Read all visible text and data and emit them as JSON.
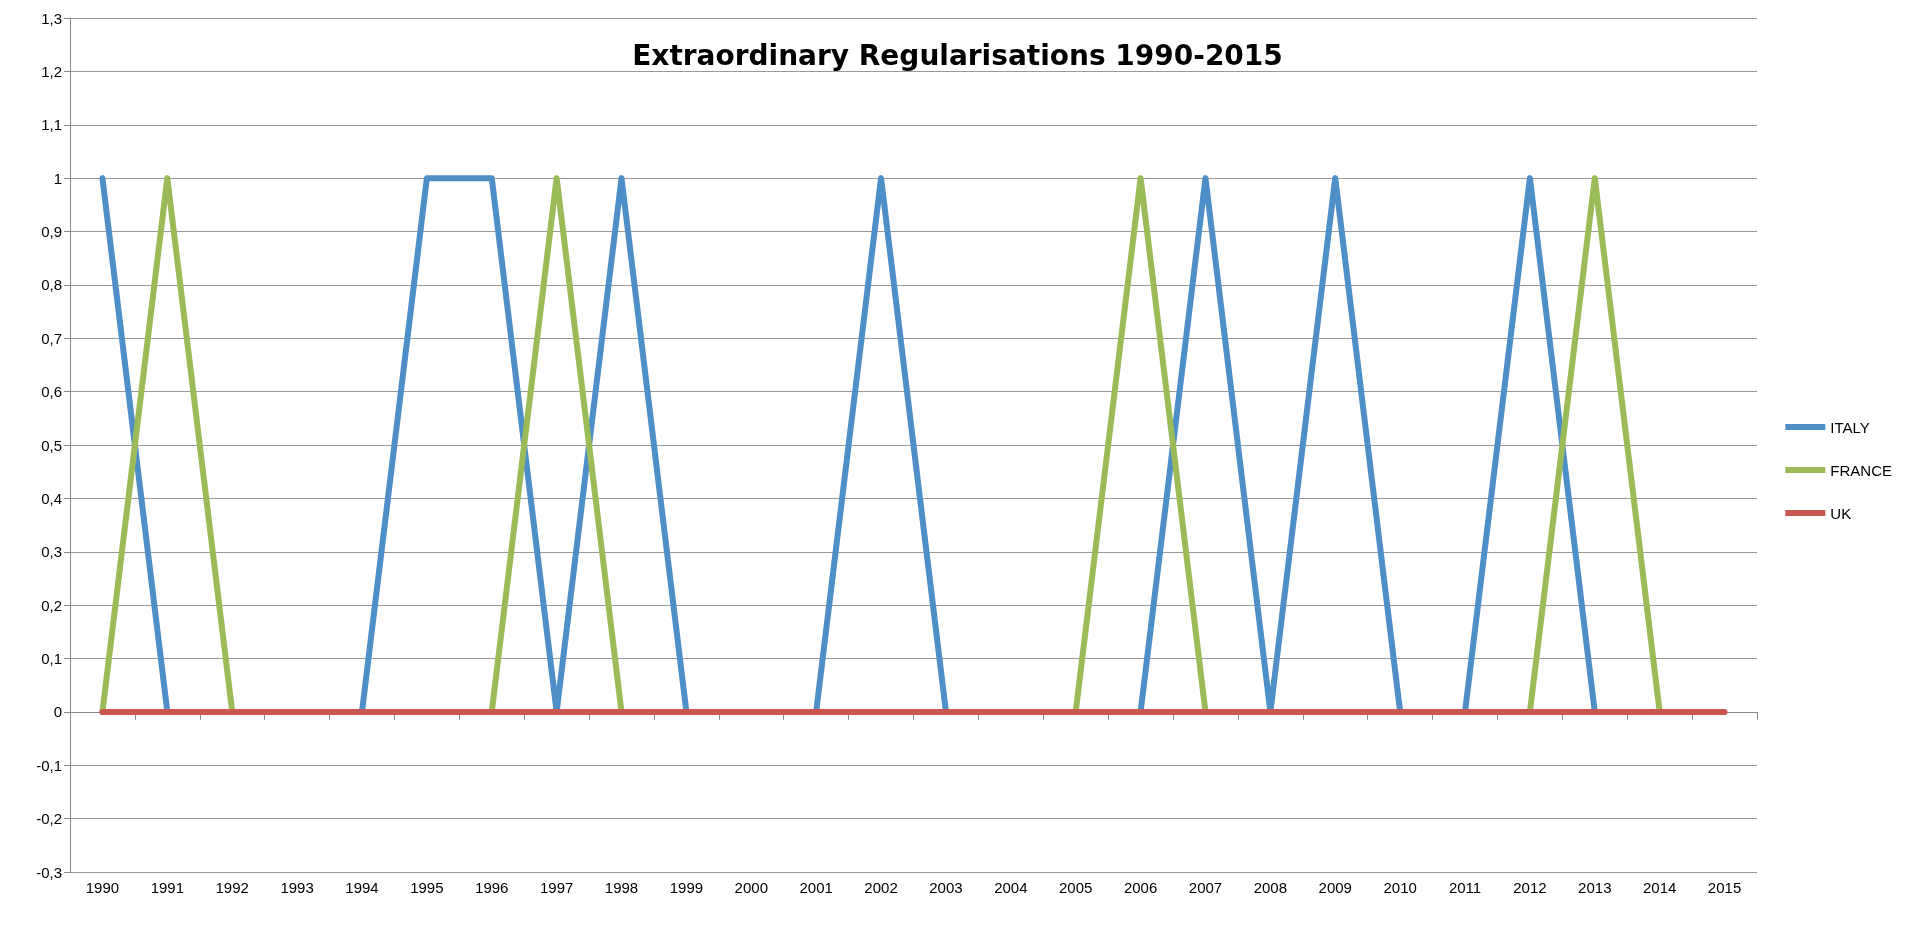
{
  "chart_data": {
    "type": "line",
    "title": "Extraordinary Regularisations 1990-2015",
    "categories": [
      "1990",
      "1991",
      "1992",
      "1993",
      "1994",
      "1995",
      "1996",
      "1997",
      "1998",
      "1999",
      "2000",
      "2001",
      "2002",
      "2003",
      "2004",
      "2005",
      "2006",
      "2007",
      "2008",
      "2009",
      "2010",
      "2011",
      "2012",
      "2013",
      "2014",
      "2015"
    ],
    "series": [
      {
        "name": "ITALY",
        "color": "#4f8fc8",
        "values": [
          1,
          0,
          null,
          null,
          0,
          1,
          1,
          0,
          1,
          0,
          null,
          0,
          1,
          0,
          null,
          null,
          0,
          1,
          0,
          1,
          0,
          0,
          1,
          0,
          null,
          null
        ]
      },
      {
        "name": "FRANCE",
        "color": "#9bbb59",
        "values": [
          0,
          1,
          0,
          null,
          null,
          null,
          0,
          1,
          0,
          null,
          null,
          null,
          null,
          null,
          null,
          0,
          1,
          0,
          null,
          null,
          null,
          null,
          0,
          1,
          0,
          null
        ]
      },
      {
        "name": "UK",
        "color": "#c9574f",
        "values": [
          0,
          0,
          0,
          0,
          0,
          0,
          0,
          0,
          0,
          0,
          0,
          0,
          0,
          0,
          0,
          0,
          0,
          0,
          0,
          0,
          0,
          0,
          0,
          0,
          0,
          0
        ]
      }
    ],
    "ylim": [
      -0.3,
      1.3
    ],
    "yticks": [
      {
        "value": -0.3,
        "label": "-0,3"
      },
      {
        "value": -0.2,
        "label": "-0,2"
      },
      {
        "value": -0.1,
        "label": "-0,1"
      },
      0,
      {
        "value": 0.1,
        "label": "0,1"
      },
      {
        "value": 0.2,
        "label": "0,2"
      },
      {
        "value": 0.3,
        "label": "0,3"
      },
      {
        "value": 0.4,
        "label": "0,4"
      },
      {
        "value": 0.5,
        "label": "0,5"
      },
      {
        "value": 0.6,
        "label": "0,6"
      },
      {
        "value": 0.7,
        "label": "0,7"
      },
      {
        "value": 0.8,
        "label": "0,8"
      },
      {
        "value": 0.9,
        "label": "0,9"
      },
      1,
      {
        "value": 1.1,
        "label": "1,1"
      },
      {
        "value": 1.2,
        "label": "1,2"
      },
      {
        "value": 1.3,
        "label": "1,3"
      }
    ],
    "grid": "y",
    "legend": "right",
    "marker": "none",
    "line_style": "solid"
  }
}
